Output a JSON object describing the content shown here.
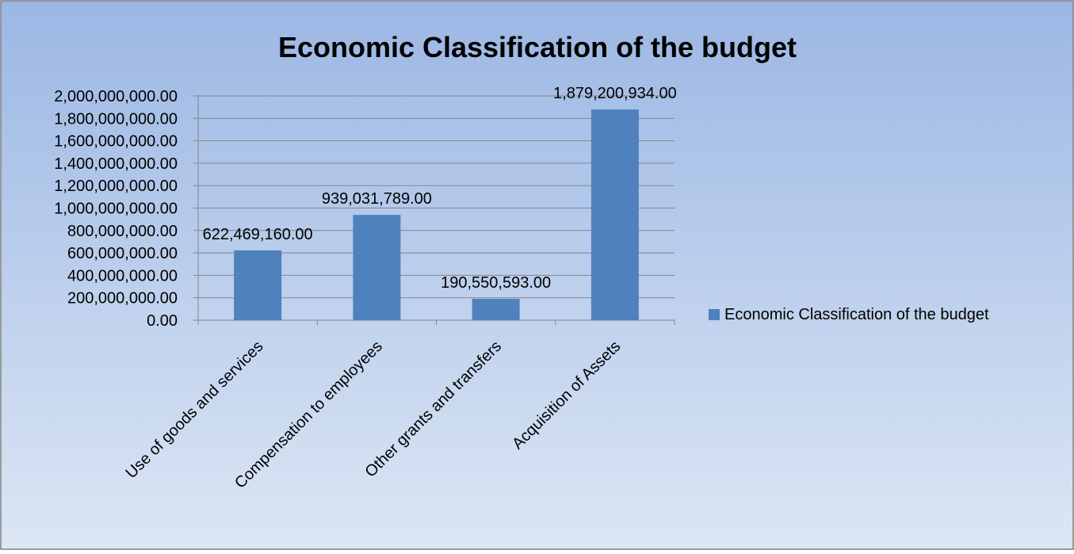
{
  "chart_data": {
    "type": "bar",
    "title": "Economic Classification of the budget",
    "xlabel": "",
    "ylabel": "",
    "categories": [
      "Use of goods and services",
      "Compensation to employees",
      "Other grants and transfers",
      "Acquisition of Assets"
    ],
    "series": [
      {
        "name": "Economic Classification of the budget",
        "values": [
          622469160.0,
          939031789.0,
          190550593.0,
          1879200934.0
        ],
        "value_labels": [
          "622,469,160.00",
          "939,031,789.00",
          "190,550,593.00",
          "1,879,200,934.00"
        ],
        "color": "#4f81bd"
      }
    ],
    "ylim": [
      0,
      2000000000
    ],
    "y_ticks": [
      0,
      200000000,
      400000000,
      600000000,
      800000000,
      1000000000,
      1200000000,
      1400000000,
      1600000000,
      1800000000,
      2000000000
    ],
    "y_tick_labels": [
      "0.00",
      "200,000,000.00",
      "400,000,000.00",
      "600,000,000.00",
      "800,000,000.00",
      "1,000,000,000.00",
      "1,200,000,000.00",
      "1,400,000,000.00",
      "1,600,000,000.00",
      "1,800,000,000.00",
      "2,000,000,000.00"
    ],
    "grid": "horizontal",
    "legend_position": "right",
    "background_colors": [
      "#9bb7e4",
      "#dce6f4"
    ],
    "border_color": "#7f7f7f"
  }
}
